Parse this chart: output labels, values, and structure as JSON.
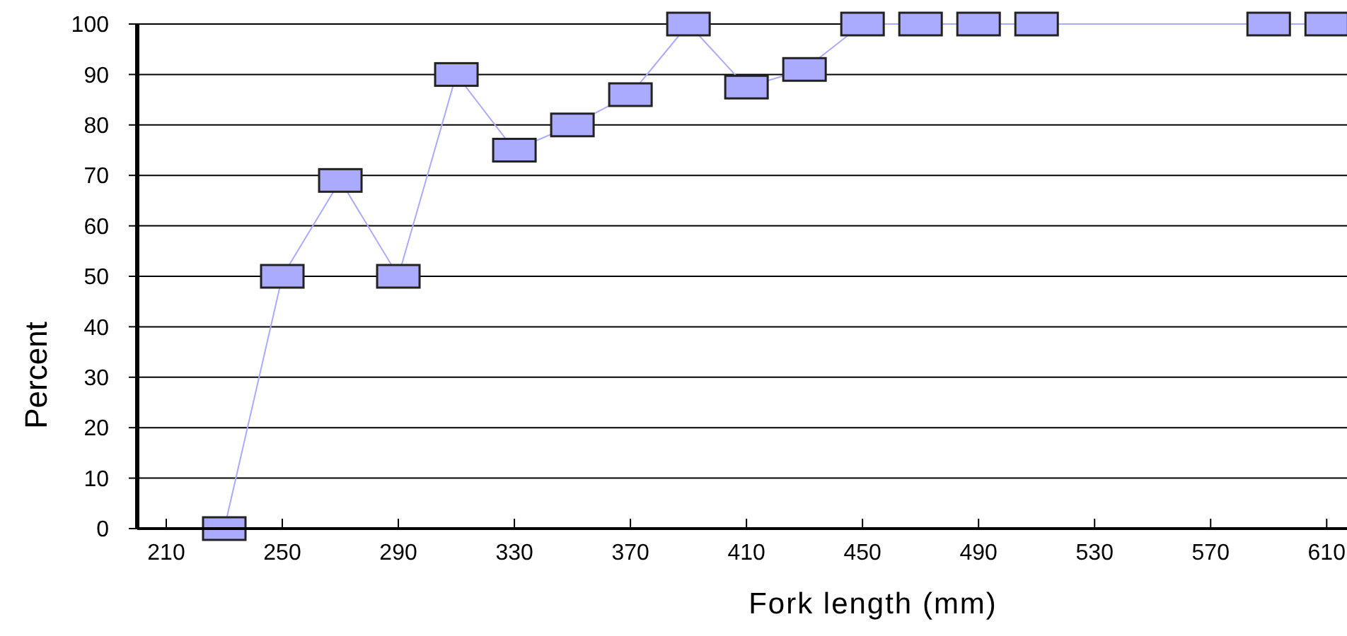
{
  "chart_data": {
    "type": "line",
    "xlabel": "Fork length (mm)",
    "ylabel": "Percent",
    "x": [
      230,
      250,
      270,
      290,
      310,
      330,
      350,
      370,
      390,
      410,
      430,
      450,
      470,
      490,
      510,
      590,
      610
    ],
    "series": [
      {
        "color": "#aaaaff",
        "values": [
          0,
          50,
          69,
          50,
          90,
          75,
          80,
          86,
          100,
          87.5,
          91,
          100,
          100,
          100,
          100,
          100,
          100
        ]
      }
    ],
    "xlim": [
      200,
      617
    ],
    "xticks": [
      210,
      250,
      290,
      330,
      370,
      410,
      450,
      490,
      530,
      570,
      610
    ],
    "ylim": [
      0,
      100
    ],
    "yticks": [
      0,
      10,
      20,
      30,
      40,
      50,
      60,
      70,
      80,
      90,
      100
    ],
    "grid": "y",
    "marker": "square",
    "line_style": "solid"
  }
}
